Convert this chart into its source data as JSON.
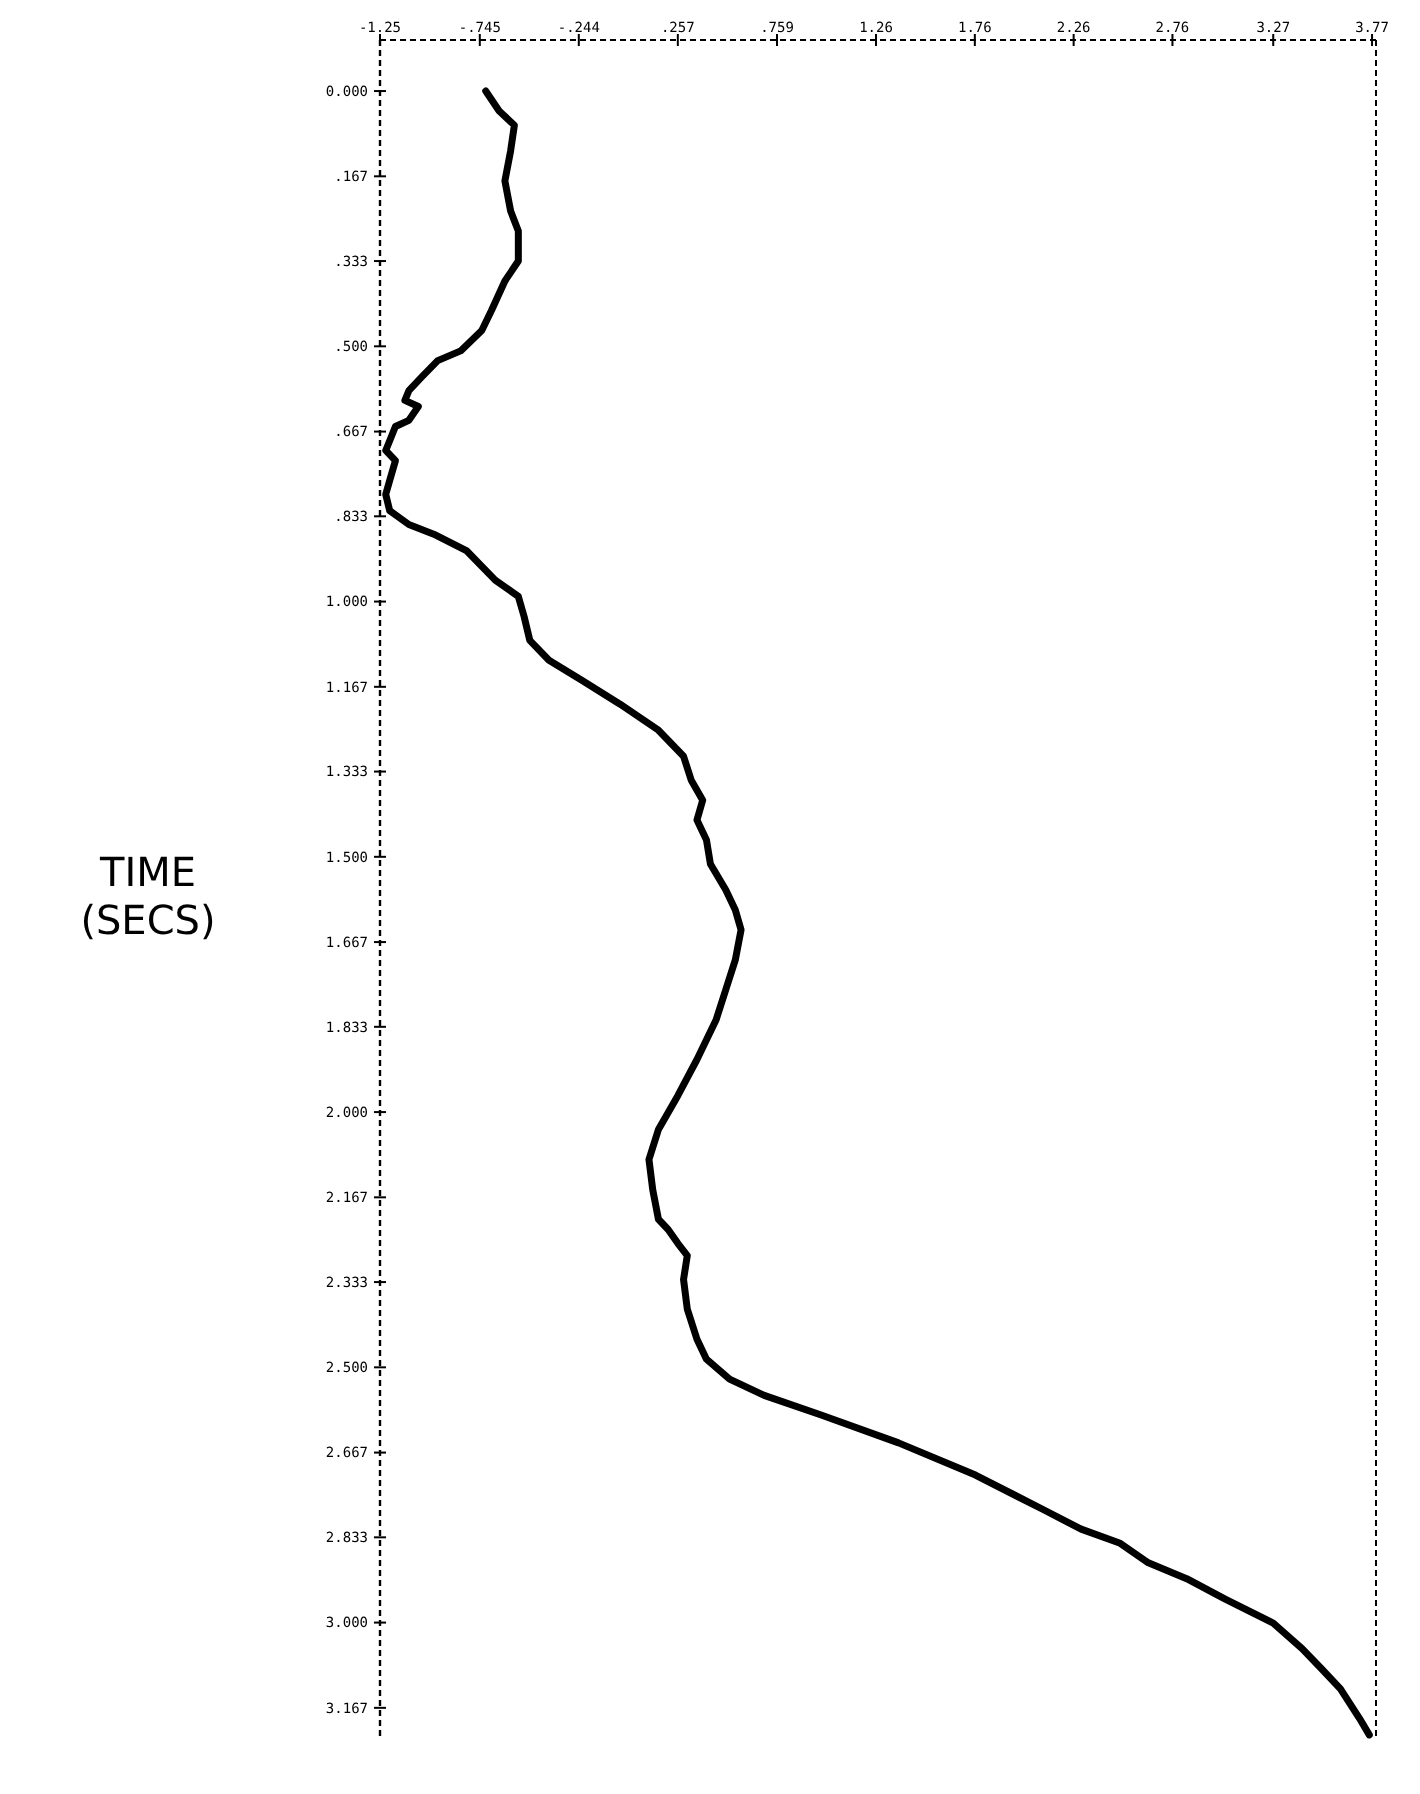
{
  "chart_data": {
    "type": "line",
    "ylabel": "TIME (SECS)",
    "xlim": [
      -1.25,
      3.79
    ],
    "ylim": [
      3.23,
      -0.1
    ],
    "xticks": [
      {
        "value": -1.25,
        "label": "-1.25"
      },
      {
        "value": -0.745,
        "label": "-.745"
      },
      {
        "value": -0.244,
        "label": "-.244"
      },
      {
        "value": 0.257,
        "label": ".257"
      },
      {
        "value": 0.759,
        "label": ".759"
      },
      1.26,
      1.76,
      2.26,
      2.76,
      3.27,
      3.77
    ],
    "yticks": [
      {
        "value": 0,
        "label": "0.000"
      },
      {
        "value": 0.167,
        "label": ".167"
      },
      {
        "value": 0.333,
        "label": ".333"
      },
      {
        "value": 0.5,
        "label": ".500"
      },
      {
        "value": 0.667,
        "label": ".667"
      },
      {
        "value": 0.833,
        "label": ".833"
      },
      {
        "value": 1,
        "label": "1.000"
      },
      1.167,
      1.333,
      {
        "value": 1.5,
        "label": "1.500"
      },
      1.667,
      1.833,
      {
        "value": 2,
        "label": "2.000"
      },
      2.167,
      2.333,
      {
        "value": 2.5,
        "label": "2.500"
      },
      2.667,
      2.833,
      {
        "value": 3,
        "label": "3.000"
      },
      3.167
    ],
    "grid": false,
    "line_style": "solid",
    "series": [
      {
        "color": "#000000",
        "x": [
          -0.715,
          -0.647,
          -0.57,
          -0.589,
          -0.618,
          -0.589,
          -0.55,
          -0.55,
          -0.618,
          -0.686,
          -0.735,
          -0.842,
          -0.958,
          -1.036,
          -1.104,
          -1.124,
          -1.056,
          -1.104,
          -1.172,
          -1.201,
          -1.221,
          -1.172,
          -1.201,
          -1.221,
          -1.201,
          -1.104,
          -0.978,
          -0.813,
          -0.667,
          -0.55,
          -0.521,
          -0.492,
          -0.395,
          -0.229,
          -0.035,
          0.159,
          0.286,
          0.325,
          0.383,
          0.354,
          0.402,
          0.422,
          0.5,
          0.548,
          0.577,
          0.548,
          0.5,
          0.451,
          0.354,
          0.257,
          0.159,
          0.111,
          0.13,
          0.159,
          0.208,
          0.257,
          0.305,
          0.286,
          0.305,
          0.354,
          0.402,
          0.519,
          0.694,
          0.986,
          1.374,
          1.763,
          2.103,
          2.298,
          2.492,
          2.638,
          2.832,
          3.027,
          3.27,
          3.416,
          3.513,
          3.61,
          3.707,
          3.756
        ],
        "values": [
          0,
          0.039,
          0.067,
          0.117,
          0.176,
          0.235,
          0.274,
          0.333,
          0.372,
          0.43,
          0.469,
          0.509,
          0.528,
          0.559,
          0.587,
          0.606,
          0.618,
          0.645,
          0.657,
          0.685,
          0.704,
          0.724,
          0.763,
          0.79,
          0.822,
          0.849,
          0.868,
          0.9,
          0.958,
          0.99,
          1.029,
          1.076,
          1.115,
          1.154,
          1.201,
          1.252,
          1.303,
          1.35,
          1.389,
          1.428,
          1.467,
          1.514,
          1.565,
          1.604,
          1.643,
          1.702,
          1.76,
          1.819,
          1.897,
          1.968,
          2.034,
          2.093,
          2.152,
          2.21,
          2.23,
          2.257,
          2.281,
          2.328,
          2.386,
          2.445,
          2.484,
          2.523,
          2.555,
          2.594,
          2.648,
          2.711,
          2.778,
          2.817,
          2.844,
          2.883,
          2.914,
          2.954,
          3.001,
          3.051,
          3.09,
          3.13,
          3.188,
          3.22
        ]
      }
    ]
  }
}
